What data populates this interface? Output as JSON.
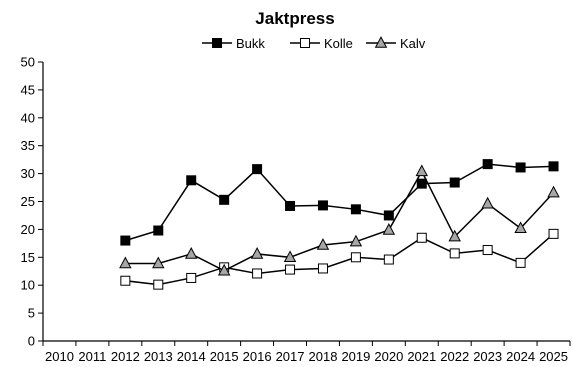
{
  "chart_data": {
    "type": "line",
    "title": "Jaktpress",
    "xlabel": "",
    "ylabel": "",
    "x": [
      "2010",
      "2011",
      "2012",
      "2013",
      "2014",
      "2015",
      "2016",
      "2017",
      "2018",
      "2019",
      "2020",
      "2021",
      "2022",
      "2023",
      "2024",
      "2025"
    ],
    "ylim": [
      0,
      50
    ],
    "yticks": [
      0,
      5,
      10,
      15,
      20,
      25,
      30,
      35,
      40,
      45,
      50
    ],
    "grid": false,
    "legend_position": "top-center",
    "series": [
      {
        "name": "Bukk",
        "marker": "filled-square",
        "color": "#000000",
        "values": [
          null,
          null,
          18.0,
          19.8,
          28.8,
          25.3,
          30.8,
          24.2,
          24.3,
          23.6,
          22.5,
          28.2,
          28.4,
          31.7,
          31.1,
          31.3
        ]
      },
      {
        "name": "Kolle",
        "marker": "open-square",
        "color": "#000000",
        "values": [
          null,
          null,
          10.8,
          10.1,
          11.3,
          13.2,
          12.1,
          12.8,
          13.0,
          15.0,
          14.6,
          18.5,
          15.7,
          16.3,
          14.0,
          19.2
        ]
      },
      {
        "name": "Kalv",
        "marker": "grey-triangle",
        "color": "#000000",
        "values": [
          null,
          null,
          13.9,
          13.9,
          15.6,
          12.6,
          15.6,
          15.0,
          17.2,
          17.8,
          19.9,
          30.4,
          18.7,
          24.6,
          20.2,
          26.6
        ]
      }
    ]
  },
  "colors": {
    "axis": "#000000",
    "marker_fill_grey": "#a6a6a6"
  }
}
